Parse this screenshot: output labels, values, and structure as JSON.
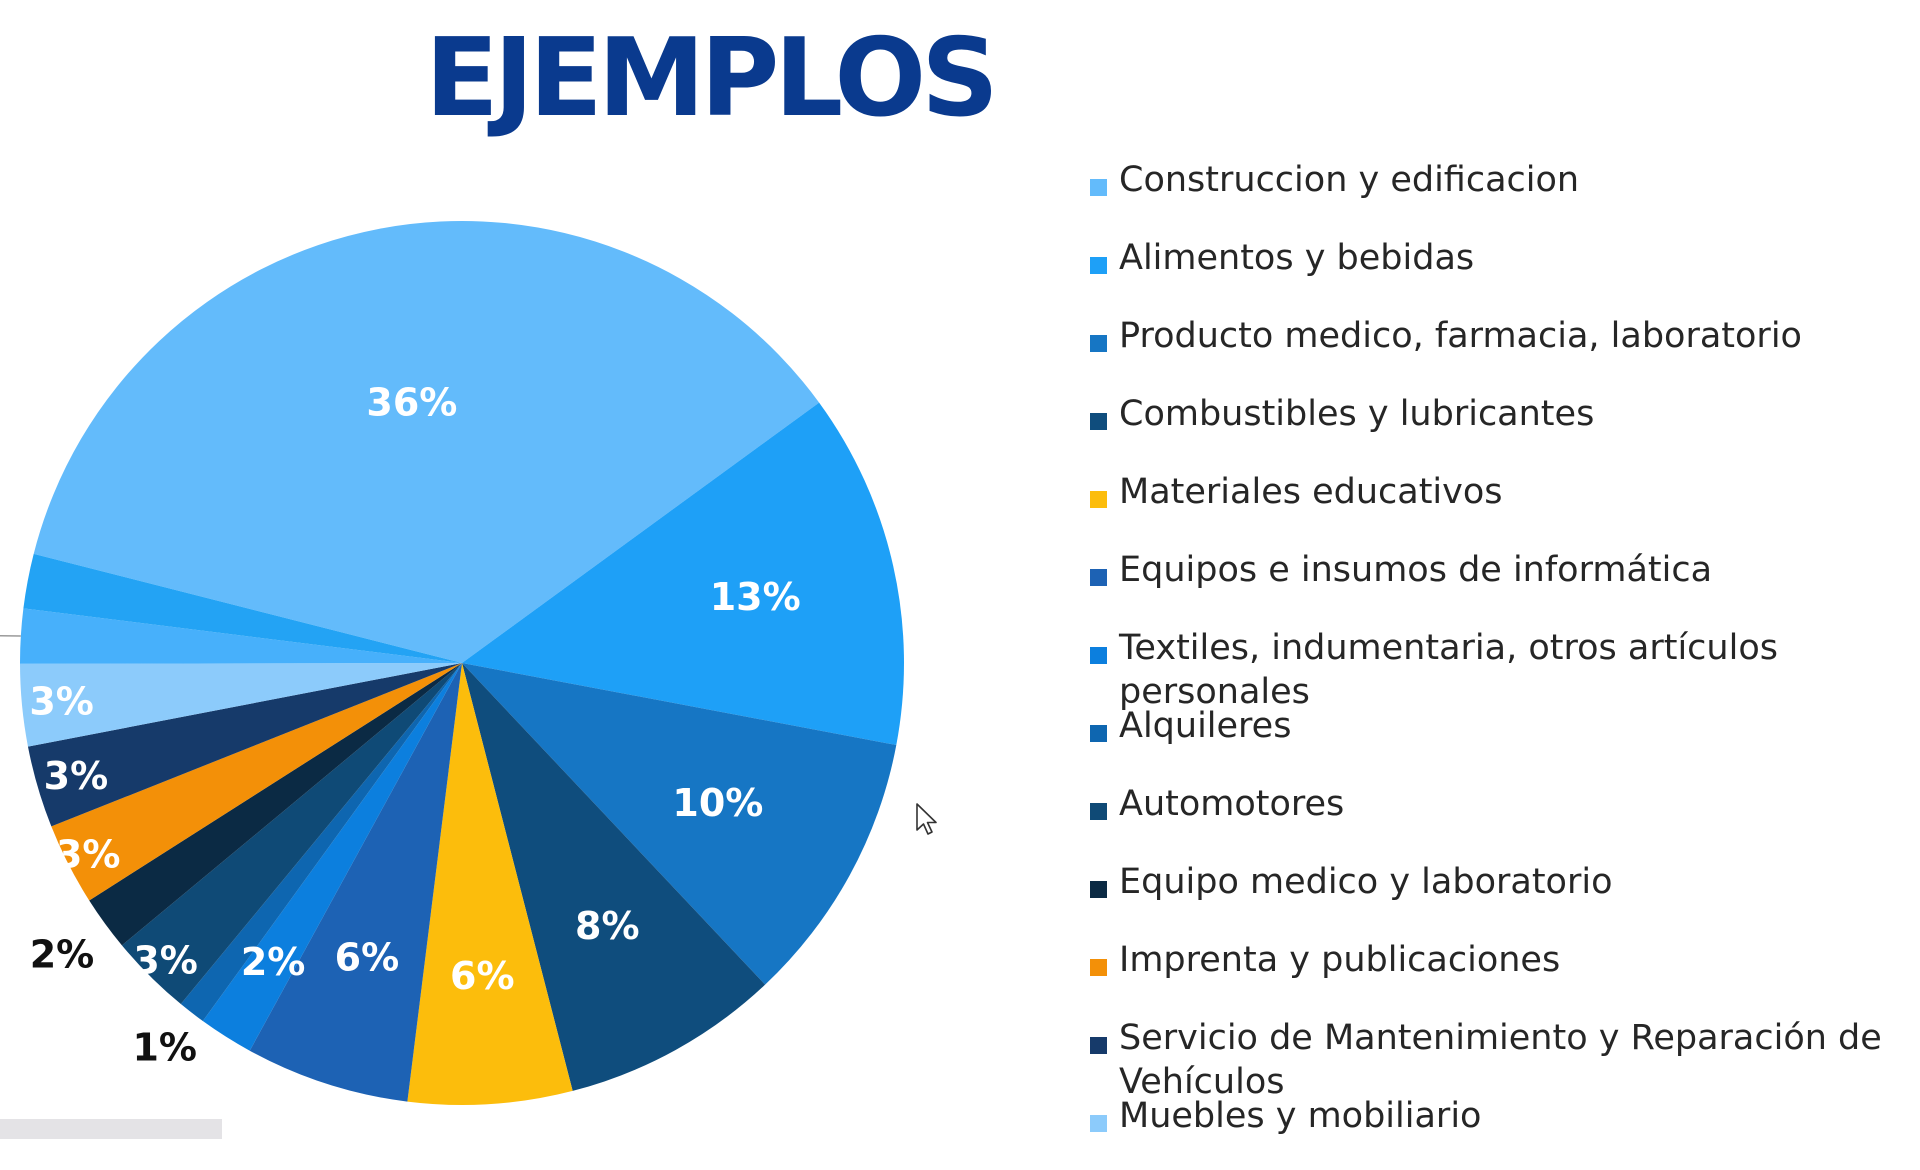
{
  "page": {
    "title": "EJEMPLOS",
    "title_color": "#0a3a8e"
  },
  "chart_data": {
    "type": "pie",
    "title": "EJEMPLOS",
    "legend_position": "right",
    "series": [
      {
        "name": "Construccion y edificacion",
        "value": 36,
        "label": "36%",
        "color": "#63bbfb"
      },
      {
        "name": "Alimentos y bebidas",
        "value": 13,
        "label": "13%",
        "color": "#1ea0f7"
      },
      {
        "name": "Producto medico, farmacia, laboratorio",
        "value": 10,
        "label": "10%",
        "color": "#1676c4"
      },
      {
        "name": "Combustibles y lubricantes",
        "value": 8,
        "label": "8%",
        "color": "#0f4d7d"
      },
      {
        "name": "Materiales educativos",
        "value": 6,
        "label": "6%",
        "color": "#fcbd0c"
      },
      {
        "name": "Equipos e insumos de informática",
        "value": 6,
        "label": "6%",
        "color": "#1d62b4"
      },
      {
        "name": "Textiles, indumentaria, otros artículos personales",
        "value": 2,
        "label": "2%",
        "color": "#0c7fde"
      },
      {
        "name": "Alquileres",
        "value": 1,
        "label": "1%",
        "color": "#0e66b0"
      },
      {
        "name": "Automotores",
        "value": 3,
        "label": "3%",
        "color": "#0f4a76"
      },
      {
        "name": "Equipo medico y laboratorio",
        "value": 2,
        "label": "2%",
        "color": "#0b2a44"
      },
      {
        "name": "Imprenta y publicaciones",
        "value": 3,
        "label": "3%",
        "color": "#f39008"
      },
      {
        "name": "Servicio de Mantenimiento y Reparación de Vehículos",
        "value": 3,
        "label": "3%",
        "color": "#163a6a"
      },
      {
        "name": "Muebles y mobiliario",
        "value": 3,
        "label": "3%",
        "color": "#8ccbfb"
      },
      {
        "name": "",
        "value": 2,
        "label": "2%",
        "color": "#47b0fb"
      },
      {
        "name": "",
        "value": 2,
        "label": "2%",
        "color": "#23a3f4"
      }
    ]
  },
  "legend": {
    "items": [
      {
        "label": "Construccion y edificacion",
        "color": "#63bbfb"
      },
      {
        "label": "Alimentos y bebidas",
        "color": "#1ea0f7"
      },
      {
        "label": "Producto medico, farmacia, laboratorio",
        "color": "#1676c4"
      },
      {
        "label": "Combustibles y lubricantes",
        "color": "#0f4d7d"
      },
      {
        "label": "Materiales educativos",
        "color": "#fcbd0c"
      },
      {
        "label": "Equipos e insumos de informática",
        "color": "#1d62b4"
      },
      {
        "label": "Textiles, indumentaria, otros artículos personales",
        "color": "#0c7fde"
      },
      {
        "label": "Alquileres",
        "color": "#0e66b0"
      },
      {
        "label": "Automotores",
        "color": "#0f4a76"
      },
      {
        "label": "Equipo medico y laboratorio",
        "color": "#0b2a44"
      },
      {
        "label": "Imprenta y publicaciones",
        "color": "#f39008"
      },
      {
        "label": "Servicio de Mantenimiento y Reparación de Vehículos",
        "color": "#163a6a"
      },
      {
        "label": "Muebles y mobiliario",
        "color": "#8ccbfb"
      }
    ]
  },
  "icons": {
    "cursor": "mouse-pointer-icon"
  }
}
